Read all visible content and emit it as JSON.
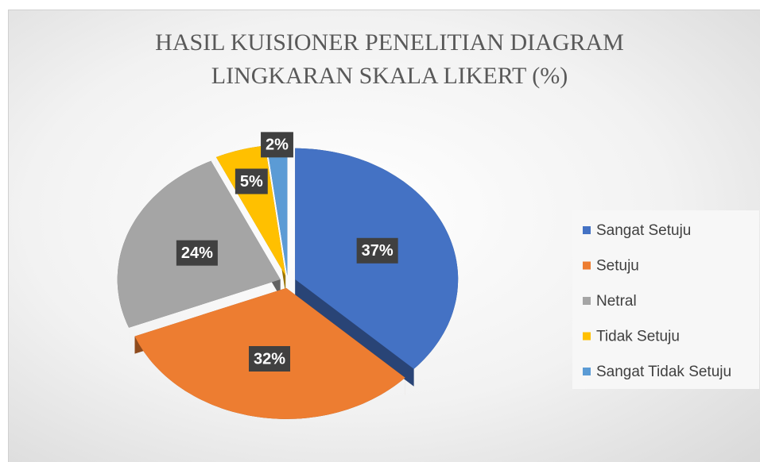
{
  "chart_data": {
    "type": "pie",
    "title": "HASIL KUISIONER PENELITIAN DIAGRAM LINGKARAN SKALA LIKERT (%)",
    "categories": [
      "Sangat Setuju",
      "Setuju",
      "Netral",
      "Tidak Setuju",
      "Sangat Tidak Setuju"
    ],
    "values": [
      37,
      32,
      24,
      5,
      2
    ],
    "value_labels": [
      "37%",
      "32%",
      "24%",
      "5%",
      "2%"
    ],
    "colors": [
      "#4472c4",
      "#ed7d31",
      "#a5a5a5",
      "#ffc000",
      "#5b9bd5"
    ],
    "legend": "right"
  }
}
